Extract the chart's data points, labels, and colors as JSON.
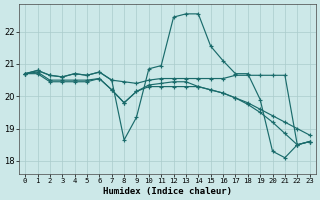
{
  "xlabel": "Humidex (Indice chaleur)",
  "bg_color": "#cce8e8",
  "line_color": "#1a6b6b",
  "grid_color": "#aacccc",
  "xlim_min": -0.5,
  "xlim_max": 23.5,
  "ylim_min": 17.6,
  "ylim_max": 22.85,
  "yticks": [
    18,
    19,
    20,
    21,
    22
  ],
  "xtick_labels": [
    "0",
    "1",
    "2",
    "3",
    "4",
    "5",
    "6",
    "7",
    "8",
    "9",
    "10",
    "11",
    "12",
    "13",
    "14",
    "15",
    "16",
    "17",
    "18",
    "19",
    "20",
    "21",
    "22",
    "23"
  ],
  "series": [
    [
      20.7,
      20.8,
      20.65,
      20.6,
      20.7,
      20.65,
      20.75,
      20.5,
      18.65,
      19.35,
      20.85,
      20.95,
      22.45,
      22.55,
      22.55,
      21.55,
      21.1,
      20.7,
      20.7,
      19.9,
      18.3,
      18.1,
      18.5,
      18.6
    ],
    [
      20.7,
      20.8,
      20.65,
      20.6,
      20.7,
      20.65,
      20.75,
      20.5,
      20.45,
      20.4,
      20.5,
      20.55,
      20.55,
      20.55,
      20.55,
      20.55,
      20.55,
      20.65,
      20.65,
      20.65,
      20.65,
      20.65,
      18.5,
      18.6
    ],
    [
      20.7,
      20.75,
      20.5,
      20.5,
      20.5,
      20.5,
      20.55,
      20.2,
      19.8,
      20.15,
      20.35,
      20.4,
      20.45,
      20.45,
      20.3,
      20.2,
      20.1,
      19.95,
      19.8,
      19.6,
      19.4,
      19.2,
      19.0,
      18.8
    ],
    [
      20.7,
      20.7,
      20.45,
      20.45,
      20.45,
      20.45,
      20.55,
      20.2,
      19.8,
      20.15,
      20.3,
      20.3,
      20.3,
      20.3,
      20.3,
      20.2,
      20.1,
      19.95,
      19.75,
      19.5,
      19.2,
      18.85,
      18.5,
      18.6
    ]
  ]
}
